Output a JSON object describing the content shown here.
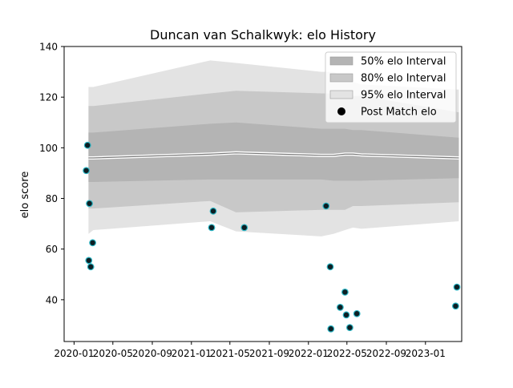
{
  "chart_data": {
    "type": "scatter",
    "title": "Duncan van Schalkwyk: elo History",
    "xlabel": "",
    "ylabel": "elo score",
    "xlim": [
      "2019-12-01",
      "2023-04-24"
    ],
    "ylim": [
      23.5,
      140
    ],
    "x_ticks": [
      "2020-01",
      "2020-05",
      "2020-09",
      "2021-01",
      "2021-05",
      "2021-09",
      "2022-01",
      "2022-05",
      "2022-09",
      "2023-01"
    ],
    "y_ticks": [
      40,
      60,
      80,
      100,
      120,
      140
    ],
    "grid": false,
    "legend_position": "top-right",
    "legend": [
      {
        "label": "50% elo Interval",
        "kind": "band",
        "color": "#b4b4b4"
      },
      {
        "label": "80% elo Interval",
        "kind": "band",
        "color": "#c8c8c8"
      },
      {
        "label": "95% elo Interval",
        "kind": "band",
        "color": "#e3e3e3"
      },
      {
        "label": "Post Match elo",
        "kind": "marker",
        "color": "#000000"
      }
    ],
    "colors": {
      "band95": "#e3e3e3",
      "band80": "#c8c8c8",
      "band50": "#b4b4b4",
      "mean_line": "#7a7a7a",
      "mean_glow": "#ffffff",
      "marker_fill": "#0d1f24",
      "marker_edge": "#2bb5c4"
    },
    "bands": {
      "dates": [
        "2020-02-15",
        "2020-03-01",
        "2021-03-01",
        "2021-05-20",
        "2022-02-10",
        "2022-03-20",
        "2022-04-25",
        "2022-05-20",
        "2022-06-15",
        "2023-04-15"
      ],
      "p95_upper": [
        124,
        124,
        134.5,
        133.5,
        130,
        130,
        128,
        126,
        125,
        123
      ],
      "p80_upper": [
        116.5,
        116.5,
        121.5,
        122.5,
        121.5,
        121.5,
        121.5,
        120.5,
        120.5,
        114
      ],
      "p50_upper": [
        106,
        106,
        109.5,
        110,
        107.5,
        107.5,
        107.5,
        107,
        107,
        104
      ],
      "mean": [
        96,
        96,
        97.5,
        98,
        97,
        97,
        97.5,
        97.5,
        97.2,
        96
      ],
      "p50_lower": [
        86.5,
        86.5,
        87.5,
        87.5,
        87.5,
        87,
        87,
        87,
        87,
        88
      ],
      "p80_lower": [
        76,
        76,
        79,
        74.5,
        75.5,
        75.5,
        75.5,
        77,
        77,
        78.5
      ],
      "p95_lower": [
        66,
        67.5,
        71,
        67,
        65,
        66,
        67.5,
        68.5,
        68,
        71
      ]
    },
    "series": [
      {
        "name": "Post Match elo",
        "points": [
          {
            "x": "2020-02-08",
            "y": 91
          },
          {
            "x": "2020-02-12",
            "y": 101
          },
          {
            "x": "2020-02-16",
            "y": 55.5
          },
          {
            "x": "2020-02-18",
            "y": 78
          },
          {
            "x": "2020-02-22",
            "y": 53
          },
          {
            "x": "2020-02-28",
            "y": 62.5
          },
          {
            "x": "2021-03-05",
            "y": 68.5
          },
          {
            "x": "2021-03-10",
            "y": 75
          },
          {
            "x": "2021-06-15",
            "y": 68.5
          },
          {
            "x": "2022-02-25",
            "y": 77
          },
          {
            "x": "2022-03-10",
            "y": 53
          },
          {
            "x": "2022-03-12",
            "y": 28.5
          },
          {
            "x": "2022-04-10",
            "y": 37
          },
          {
            "x": "2022-04-25",
            "y": 43
          },
          {
            "x": "2022-04-29",
            "y": 34
          },
          {
            "x": "2022-05-10",
            "y": 29
          },
          {
            "x": "2022-06-01",
            "y": 34.5
          },
          {
            "x": "2023-04-05",
            "y": 37.5
          },
          {
            "x": "2023-04-09",
            "y": 45
          }
        ]
      }
    ]
  }
}
